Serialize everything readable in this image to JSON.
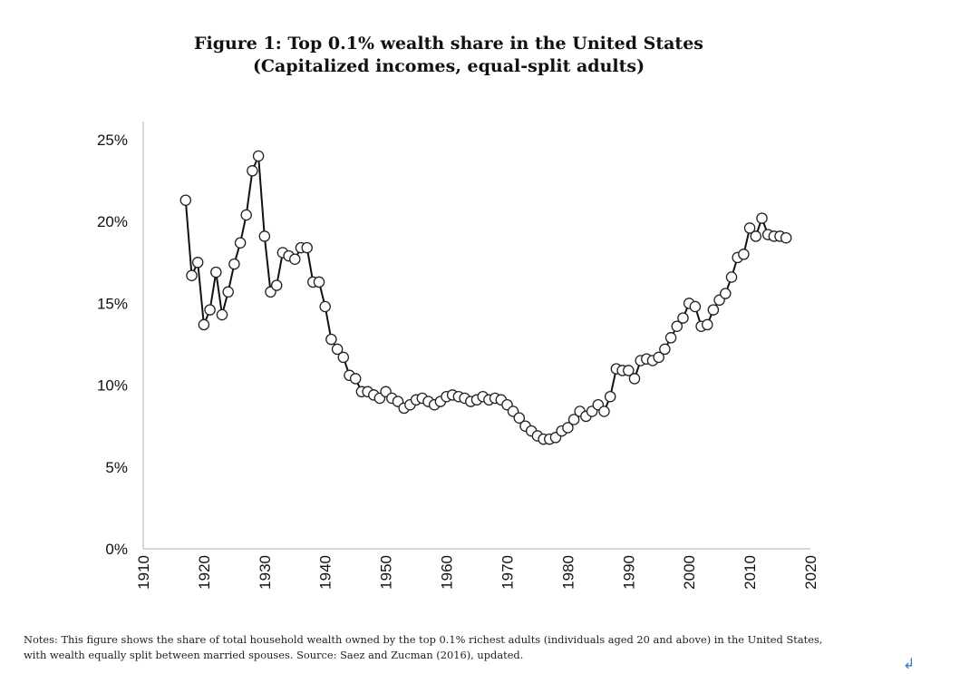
{
  "figure": {
    "title_line1": "Figure 1: Top 0.1% wealth share in the United States",
    "title_line2": "(Capitalized incomes, equal-split adults)",
    "notes_line1": "Notes: This figure shows the share of total household wealth owned by the top 0.1% richest adults (individuals aged 20 and above) in the United States,",
    "notes_line2": "with wealth equally split between married spouses. Source: Saez and Zucman (2016), updated."
  },
  "chart_data": {
    "type": "line",
    "title": "Figure 1: Top 0.1% wealth share in the United States",
    "subtitle": "(Capitalized incomes, equal-split adults)",
    "xlabel": "",
    "ylabel": "",
    "xlim": [
      1910,
      2020
    ],
    "ylim": [
      0,
      25
    ],
    "xticks": [
      1910,
      1920,
      1930,
      1940,
      1950,
      1960,
      1970,
      1980,
      1990,
      2000,
      2010,
      2020
    ],
    "yticks": [
      {
        "value": 0,
        "label": "0%"
      },
      {
        "value": 5,
        "label": "5%"
      },
      {
        "value": 10,
        "label": "10%"
      },
      {
        "value": 15,
        "label": "15%"
      },
      {
        "value": 20,
        "label": "20%"
      },
      {
        "value": 25,
        "label": "25%"
      }
    ],
    "grid": false,
    "legend": "none",
    "marker": "hollow-circle",
    "line_color": "#111111",
    "x": [
      1917,
      1918,
      1919,
      1920,
      1921,
      1922,
      1923,
      1924,
      1925,
      1926,
      1927,
      1928,
      1929,
      1930,
      1931,
      1932,
      1933,
      1934,
      1935,
      1936,
      1937,
      1938,
      1939,
      1940,
      1941,
      1942,
      1943,
      1944,
      1945,
      1946,
      1947,
      1948,
      1949,
      1950,
      1951,
      1952,
      1953,
      1954,
      1955,
      1956,
      1957,
      1958,
      1959,
      1960,
      1961,
      1962,
      1963,
      1964,
      1965,
      1966,
      1967,
      1968,
      1969,
      1970,
      1971,
      1972,
      1973,
      1974,
      1975,
      1976,
      1977,
      1978,
      1979,
      1980,
      1981,
      1982,
      1983,
      1984,
      1985,
      1986,
      1987,
      1988,
      1989,
      1990,
      1991,
      1992,
      1993,
      1994,
      1995,
      1996,
      1997,
      1998,
      1999,
      2000,
      2001,
      2002,
      2003,
      2004,
      2005,
      2006,
      2007,
      2008,
      2009,
      2010,
      2011,
      2012,
      2013,
      2014,
      2015,
      2016
    ],
    "values": [
      21.3,
      16.7,
      17.5,
      13.7,
      14.6,
      16.9,
      14.3,
      15.7,
      17.4,
      18.7,
      20.4,
      23.1,
      24.0,
      19.1,
      15.7,
      16.1,
      18.1,
      17.9,
      17.7,
      18.4,
      18.4,
      16.3,
      16.3,
      14.8,
      12.8,
      12.2,
      11.7,
      10.6,
      10.4,
      9.6,
      9.6,
      9.4,
      9.2,
      9.6,
      9.2,
      9.0,
      8.6,
      8.8,
      9.1,
      9.2,
      9.0,
      8.8,
      9.0,
      9.3,
      9.4,
      9.3,
      9.2,
      9.0,
      9.1,
      9.3,
      9.1,
      9.2,
      9.1,
      8.8,
      8.4,
      8.0,
      7.5,
      7.2,
      6.9,
      6.7,
      6.7,
      6.8,
      7.2,
      7.4,
      7.9,
      8.4,
      8.1,
      8.4,
      8.8,
      8.4,
      9.3,
      11.0,
      10.9,
      10.9,
      10.4,
      11.5,
      11.6,
      11.5,
      11.7,
      12.2,
      12.9,
      13.6,
      14.1,
      15.0,
      14.8,
      13.6,
      13.7,
      14.6,
      15.2,
      15.6,
      16.6,
      17.8,
      18.0,
      19.6,
      19.1,
      20.2,
      19.2,
      19.1,
      19.1,
      19.0
    ]
  }
}
